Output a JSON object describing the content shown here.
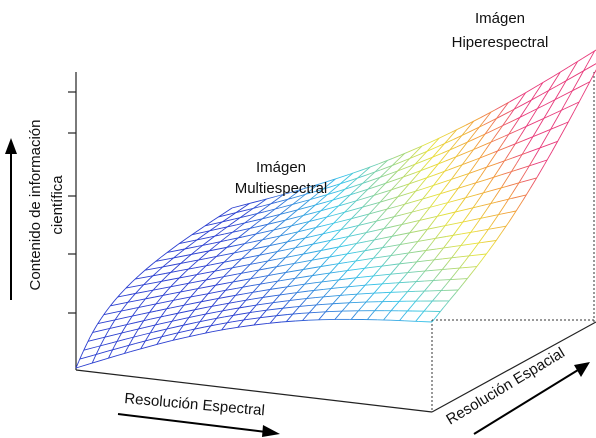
{
  "diagram": {
    "labels": {
      "hyperspectral_line1": "Imágen",
      "hyperspectral_line2": "Hiperespectral",
      "multispectral_line1": "Imágen",
      "multispectral_line2": "Multiespectral",
      "y_axis_line1": "Contenido de información",
      "y_axis_line2": "científica",
      "x_axis": "Resolución Espectral",
      "z_axis": "Resolución Espacial"
    },
    "colors": {
      "axis": "#222222",
      "low": "#2b3fd0",
      "mid": "#39c6e8",
      "high_yellow": "#e8e23a",
      "high_orange": "#f29a38",
      "peak": "#e83a7a"
    }
  }
}
